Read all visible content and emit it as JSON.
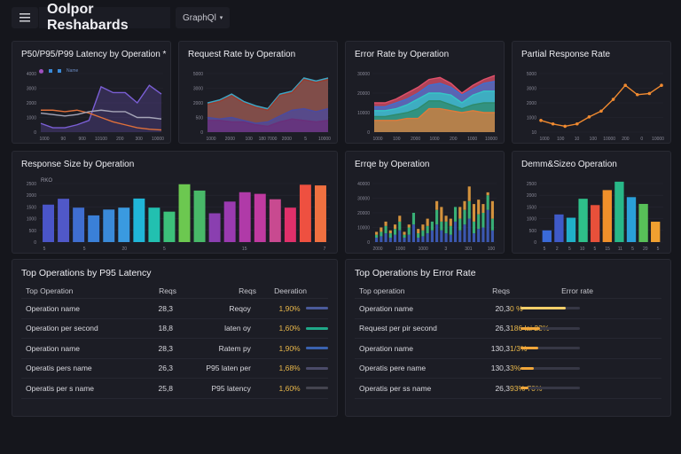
{
  "header": {
    "title": "Oolpor Reshabards",
    "selector": "GraphQl",
    "menu_icon": "hamburger-icon",
    "dropdown_icon": "chevron-down-icon"
  },
  "panels": {
    "latency": {
      "title": "P50/P95/P99 Latency by Operation *",
      "legend": "Name"
    },
    "request_rate": {
      "title": "Request Rate by Operation"
    },
    "error_rate": {
      "title": "Error Rate by Operation"
    },
    "partial": {
      "title": "Partial Response Rate"
    },
    "response_size": {
      "title": "Response Size by Operation",
      "unit": "RKO"
    },
    "errors": {
      "title": "Errqe by Operation"
    },
    "size2": {
      "title": "Demm&Sizeo Operation"
    }
  },
  "chart_data": [
    {
      "id": "latency",
      "type": "line",
      "ylim": [
        0,
        4000
      ],
      "y_ticks": [
        "0",
        "1000",
        "2000",
        "3000",
        "4000"
      ],
      "x_ticks": [
        "1000",
        "90",
        "900",
        "10100",
        "200",
        "300",
        "10000"
      ],
      "series": [
        {
          "color": "#7b5fd6",
          "values": [
            600,
            300,
            300,
            500,
            800,
            3100,
            2700,
            2700,
            2000,
            3200,
            2600
          ],
          "fill": true
        },
        {
          "color": "#e0703a",
          "values": [
            1500,
            1500,
            1400,
            1500,
            1300,
            1000,
            700,
            500,
            300,
            200,
            150
          ]
        },
        {
          "color": "#a6a6b8",
          "values": [
            1300,
            1200,
            1100,
            1200,
            1400,
            1500,
            1400,
            1400,
            1000,
            1000,
            900
          ]
        }
      ]
    },
    {
      "id": "request_rate",
      "type": "area",
      "ylim": [
        0,
        4000
      ],
      "y_ticks": [
        "0",
        "500",
        "2000",
        "3000",
        "5000"
      ],
      "x_ticks": [
        "1000",
        "2000",
        "100",
        "180 7000",
        "2000",
        "5",
        "10000"
      ],
      "series": [
        {
          "color": "#3fa6c4",
          "values": [
            2000,
            2200,
            2600,
            2100,
            1800,
            1600,
            2600,
            2800,
            3700,
            3500,
            3700
          ]
        },
        {
          "color": "#9a3b2e",
          "values": [
            1900,
            2100,
            2500,
            2000,
            1700,
            1500,
            2500,
            2700,
            3600,
            3400,
            3600
          ]
        },
        {
          "color": "#4a4aa0",
          "values": [
            1000,
            900,
            1000,
            800,
            600,
            700,
            1100,
            1500,
            1600,
            1400,
            1600
          ]
        },
        {
          "color": "#6a2f7a",
          "values": [
            800,
            800,
            700,
            700,
            500,
            400,
            700,
            900,
            800,
            700,
            800
          ]
        }
      ]
    },
    {
      "id": "error_rate",
      "type": "area",
      "ylim": [
        0,
        30000
      ],
      "y_ticks": [
        "0",
        "10000",
        "20000",
        "30000"
      ],
      "x_ticks": [
        "1000",
        "100",
        "2000",
        "1000",
        "200",
        "1000",
        "10000"
      ],
      "series": [
        {
          "color": "#e0506a",
          "values": [
            15000,
            15000,
            17000,
            20000,
            23000,
            27000,
            28000,
            25000,
            20000,
            24000,
            27000,
            29000
          ]
        },
        {
          "color": "#3e6fd0",
          "values": [
            13000,
            13000,
            15000,
            17000,
            20000,
            24000,
            25000,
            23000,
            19000,
            22000,
            25000,
            26000
          ]
        },
        {
          "color": "#35c6c6",
          "values": [
            11000,
            11000,
            12000,
            14000,
            17000,
            20000,
            20000,
            19000,
            15000,
            19000,
            21000,
            21000
          ]
        },
        {
          "color": "#2f8a6a",
          "values": [
            8000,
            8000,
            9000,
            10000,
            12000,
            16000,
            16000,
            14000,
            12000,
            14000,
            15000,
            15000
          ]
        },
        {
          "color": "#e07a3a",
          "values": [
            6000,
            6000,
            6000,
            7000,
            7000,
            12000,
            12000,
            11000,
            10000,
            11000,
            10000,
            10000
          ]
        }
      ]
    },
    {
      "id": "partial",
      "type": "line",
      "ylim": [
        0,
        5000
      ],
      "y_ticks": [
        "10",
        "1000",
        "2000",
        "3000",
        "5000"
      ],
      "x_ticks": [
        "1000",
        "100",
        "10",
        "100",
        "10000",
        "200",
        "0",
        "10000"
      ],
      "series": [
        {
          "color": "#f08a30",
          "values": [
            1000,
            700,
            500,
            700,
            1300,
            1800,
            2800,
            4000,
            3200,
            3300,
            4000
          ],
          "markers": true
        }
      ]
    },
    {
      "id": "response_size",
      "type": "bar",
      "ylim": [
        0,
        2500
      ],
      "y_ticks": [
        "0",
        "500",
        "1000",
        "1500",
        "2000",
        "2500"
      ],
      "x_ticks": [
        "5",
        "5",
        "20",
        "5",
        "",
        "15",
        "",
        "7"
      ],
      "values": [
        1600,
        1850,
        1470,
        1140,
        1390,
        1470,
        1860,
        1470,
        1300,
        2470,
        2200,
        1230,
        1730,
        2130,
        2060,
        1830,
        1470,
        2450,
        2420
      ],
      "colors": [
        "#4a55c8",
        "#5058c8",
        "#3f6ed0",
        "#3a80d8",
        "#3a8ad8",
        "#3a9ae0",
        "#20b6d8",
        "#22c0b0",
        "#3cc07a",
        "#6cc850",
        "#48b868",
        "#8a3fb0",
        "#9a3ab0",
        "#b03aa8",
        "#c03aa0",
        "#c84a90",
        "#e0306a",
        "#ee5040",
        "#f07040"
      ]
    },
    {
      "id": "errors",
      "type": "stacked-bar",
      "ylim": [
        0,
        40000
      ],
      "y_ticks": [
        "0",
        "10000",
        "20000",
        "30000",
        "40000"
      ],
      "x_ticks": [
        "2000",
        "1000",
        "1000",
        "3",
        "301",
        "100"
      ],
      "series": [
        {
          "color": "#3f5fc0",
          "values": [
            3000,
            4000,
            6000,
            3000,
            5000,
            8000,
            3000,
            5000,
            12000,
            3000,
            4000,
            6000,
            8000,
            12000,
            8000,
            6000,
            5000,
            14000,
            8000,
            12000,
            16000,
            6000,
            9000,
            10000,
            22000,
            8000
          ]
        },
        {
          "color": "#3cc080",
          "values": [
            2000,
            3000,
            5000,
            3000,
            4000,
            6000,
            2000,
            5000,
            8000,
            3000,
            4000,
            5000,
            6000,
            10000,
            6000,
            8000,
            6000,
            10000,
            8000,
            10000,
            12000,
            8000,
            10000,
            10000,
            10000,
            8000
          ]
        },
        {
          "color": "#e8a040",
          "values": [
            2000,
            3000,
            3000,
            2000,
            3000,
            4000,
            2000,
            2000,
            0,
            3000,
            4000,
            5000,
            0,
            6000,
            10000,
            4000,
            5000,
            0,
            8000,
            6000,
            10000,
            12000,
            10000,
            6000,
            2000,
            12000
          ]
        }
      ]
    },
    {
      "id": "size2",
      "type": "bar",
      "ylim": [
        0,
        2500
      ],
      "y_ticks": [
        "0",
        "500",
        "1000",
        "1500",
        "2000",
        "2500"
      ],
      "x_ticks": [
        "5",
        "2",
        "5",
        "10",
        "5",
        "15",
        "11",
        "5",
        "20",
        "5"
      ],
      "values": [
        500,
        1180,
        1040,
        1850,
        1580,
        2220,
        2580,
        1920,
        1630,
        870
      ],
      "colors": [
        "#3a6ad8",
        "#3f5ac8",
        "#20b0c8",
        "#2ec08a",
        "#e8503a",
        "#f0902a",
        "#28b888",
        "#2aa0d8",
        "#58c058",
        "#f0a030"
      ]
    }
  ],
  "tables": {
    "latency": {
      "title": "Top Operations by P95 Latency",
      "headers": [
        "Top Operation",
        "Reqs",
        "Reqs",
        "Deeration"
      ],
      "rows": [
        [
          "Operation name",
          "28,3",
          "Reqoy",
          "1,90%"
        ],
        [
          "Operation per second",
          "18,8",
          "laten oy",
          "1,60%"
        ],
        [
          "Operation name",
          "28,3",
          "Ratem py",
          "1,90%"
        ],
        [
          "Operatis pers name",
          "26,3",
          "P95 laten per",
          "1,68%"
        ],
        [
          "Operatis per s name",
          "25,8",
          "P95 latency",
          "1,60%"
        ]
      ],
      "bar_colors": [
        "#4a5a9a",
        "#1fa888",
        "#3a62b0",
        "#4a4a68",
        "#44444f"
      ]
    },
    "errors": {
      "title": "Top Operations by Error Rate",
      "headers": [
        "Top operation",
        "Reqs",
        "",
        "Error rate"
      ],
      "rows": [
        [
          "Operation name",
          "20,3",
          "0 %"
        ],
        [
          "Request per pir second",
          "26,3",
          "186 lai 23%"
        ],
        [
          "Operation name",
          "130,3",
          "1/3%"
        ],
        [
          "Operatis pere name",
          "130,3",
          "3%"
        ],
        [
          "Operatis per ss name",
          "26,3",
          "93% 70%"
        ]
      ],
      "error_fill": [
        0.76,
        0.33,
        0.3,
        0.22,
        0.13
      ],
      "bar_colors": [
        "#f4cf6a",
        "#f0a63a",
        "#f0a63a",
        "#f0a63a",
        "#f0a63a"
      ]
    }
  }
}
